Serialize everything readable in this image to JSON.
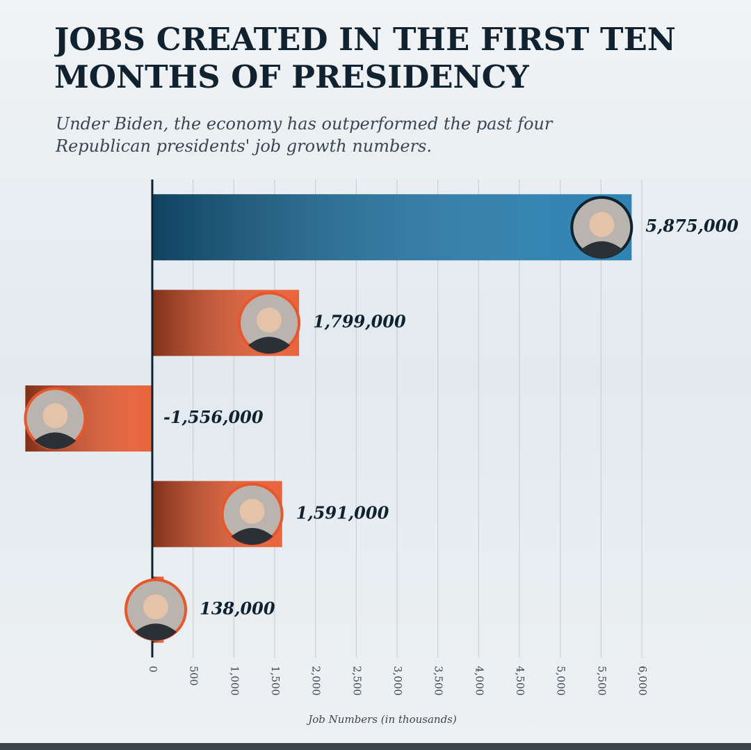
{
  "chart_data": {
    "type": "hbar",
    "title": "JOBS CREATED IN THE FIRST TEN MONTHS OF PRESIDENCY",
    "subtitle": "Under Biden, the economy has outperformed the past four Republican presidents' job growth numbers.",
    "x_label": "Job Numbers (in thousands)",
    "values": [
      5875,
      1799,
      -1556,
      1591,
      138
    ],
    "value_labels": [
      "5,875,000",
      "1,799,000",
      "-1,556,000",
      "1,591,000",
      "138,000"
    ],
    "colors": [
      "#1b78ad",
      "#e8562a",
      "#e8562a",
      "#e8562a",
      "#e8562a"
    ],
    "xlim": [
      -1800,
      7200
    ],
    "xticks": [
      0,
      500,
      {
        "value": 1000,
        "label": "1,000"
      },
      {
        "value": 1500,
        "label": "1,500"
      },
      {
        "value": 2000,
        "label": "2,000"
      },
      {
        "value": 2500,
        "label": "2,500"
      },
      {
        "value": 3000,
        "label": "3,000"
      },
      {
        "value": 3500,
        "label": "3,500"
      },
      {
        "value": 4000,
        "label": "4,000"
      },
      {
        "value": 4500,
        "label": "4,500"
      },
      {
        "value": 5000,
        "label": "5,000"
      },
      {
        "value": 5500,
        "label": "5,500"
      },
      {
        "value": 6000,
        "label": "6,000"
      }
    ],
    "grid": true
  }
}
